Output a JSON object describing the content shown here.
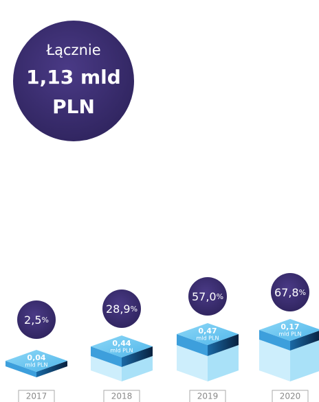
{
  "total": {
    "label": "Łącznie",
    "value": "1,13 mld",
    "unit": "PLN"
  },
  "years": [
    {
      "year": "2017",
      "percent": "2,5",
      "percent_unit": "%",
      "amount": "0,04",
      "amount_unit": "mld PLN"
    },
    {
      "year": "2018",
      "percent": "28,9",
      "percent_unit": "%",
      "amount": "0,44",
      "amount_unit": "mld PLN"
    },
    {
      "year": "2019",
      "percent": "57,0",
      "percent_unit": "%",
      "amount": "0,47",
      "amount_unit": "mld PLN"
    },
    {
      "year": "2020",
      "percent": "67,8",
      "percent_unit": "%",
      "amount": "0,17",
      "amount_unit": "mld PLN"
    }
  ]
}
